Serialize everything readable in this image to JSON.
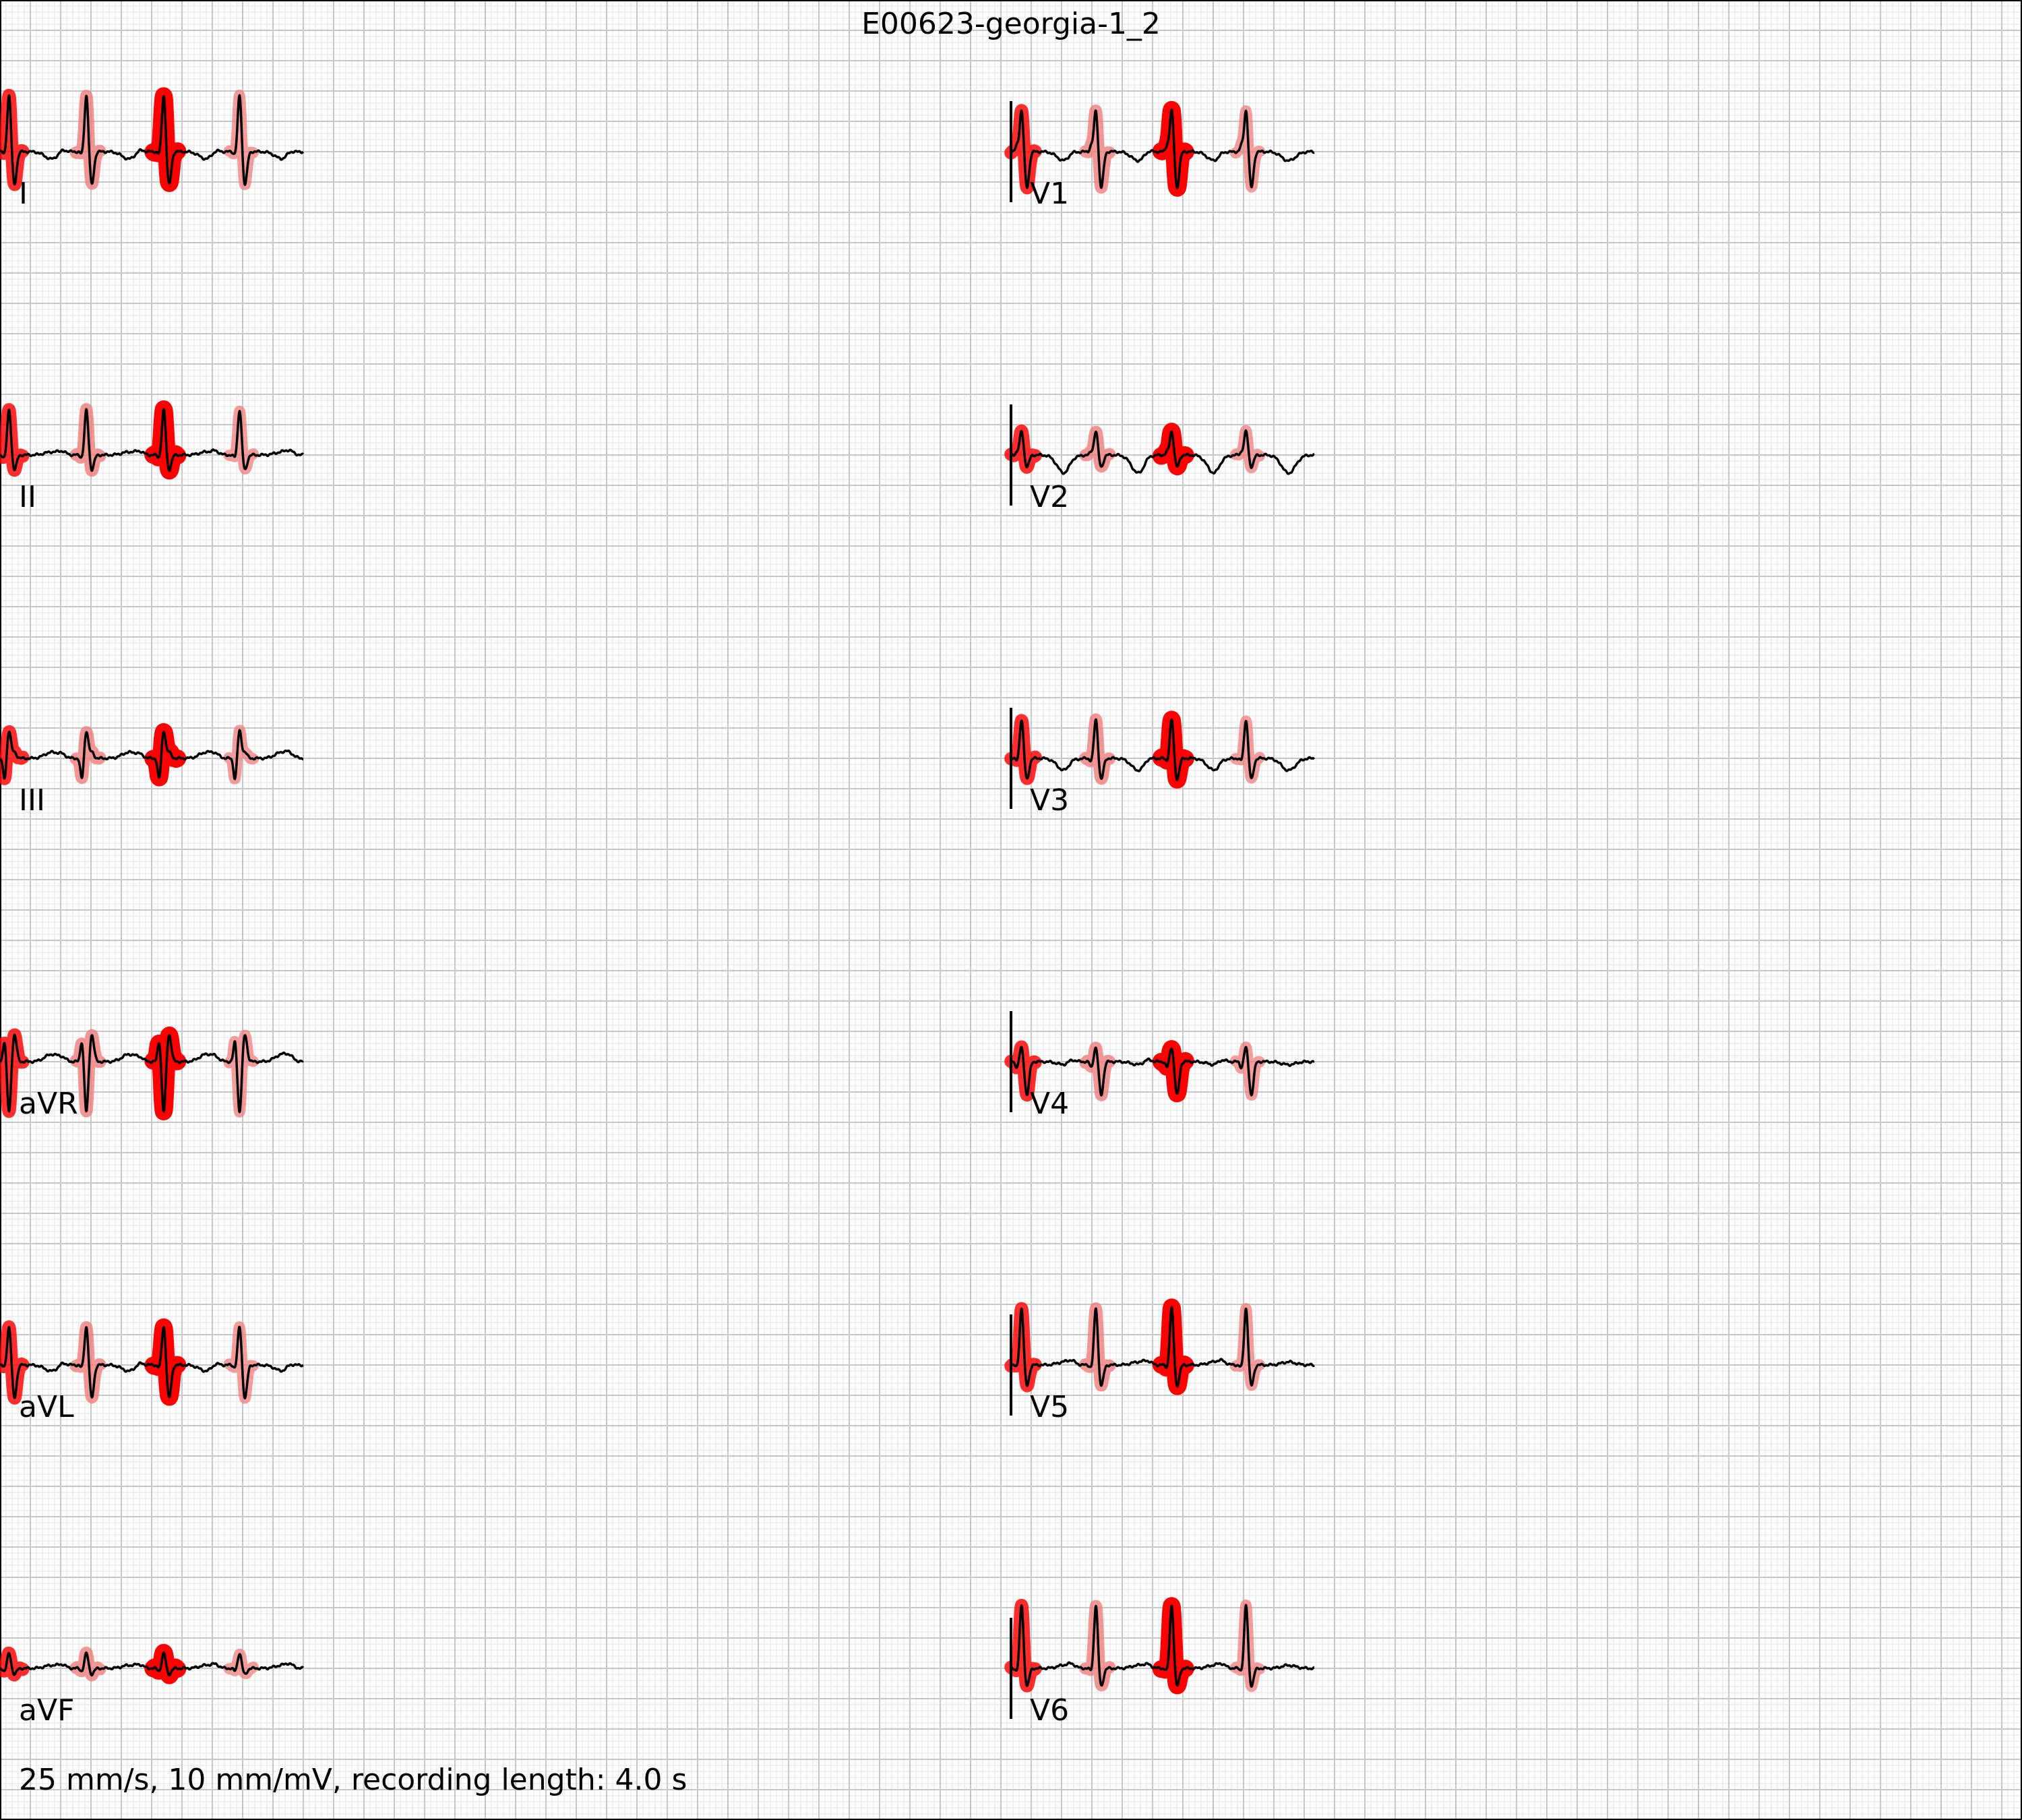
{
  "title": "E00623-georgia-1_2",
  "footer": "25 mm/s, 10 mm/mV, recording length: 4.0 s",
  "colors": {
    "grid_major": "#c8c8c8",
    "grid_minor": "#ebebeb",
    "trace": "#000000",
    "highlight_strong": "#ff0000",
    "highlight_soft": "#f07878"
  },
  "chart_data": {
    "type": "line",
    "paper_speed_mm_per_s": 25,
    "gain_mm_per_mV": 10,
    "recording_length_s": 4.0,
    "columns": [
      {
        "time_range_s": [
          0,
          2.0
        ],
        "leads": [
          "I",
          "II",
          "III",
          "aVR",
          "aVL",
          "aVF"
        ]
      },
      {
        "time_range_s": [
          2.0,
          4.0
        ],
        "leads": [
          "V1",
          "V2",
          "V3",
          "V4",
          "V5",
          "V6"
        ]
      }
    ],
    "beat_times_s": [
      0.06,
      0.57,
      1.08,
      1.58,
      2.07,
      2.56,
      3.06,
      3.55
    ],
    "beat_highlight_levels": [
      0.6,
      0.5,
      1.0,
      0.4
    ],
    "beats": {
      "I": {
        "q": -0.05,
        "r": 0.95,
        "s": -0.55,
        "t": -0.12
      },
      "II": {
        "q": -0.05,
        "r": 0.75,
        "s": -0.25,
        "t": 0.05
      },
      "III": {
        "q": -0.35,
        "r": 0.45,
        "s": 0.1,
        "t": 0.1
      },
      "aVR": {
        "q": 0.35,
        "r": -0.85,
        "s": 0.45,
        "t": 0.12
      },
      "aVL": {
        "q": -0.05,
        "r": 0.65,
        "s": -0.55,
        "t": -0.1
      },
      "aVF": {
        "q": -0.05,
        "r": 0.25,
        "s": -0.1,
        "t": 0.05
      },
      "V1": {
        "q": 0.1,
        "r": 0.7,
        "s": -0.6,
        "t": -0.15
      },
      "V2": {
        "q": 0.05,
        "r": 0.4,
        "s": -0.2,
        "t": -0.3
      },
      "V3": {
        "q": -0.05,
        "r": 0.65,
        "s": -0.35,
        "t": -0.2
      },
      "V4": {
        "q": -0.1,
        "r": 0.25,
        "s": -0.55,
        "t": -0.05
      },
      "V5": {
        "q": -0.05,
        "r": 0.95,
        "s": -0.35,
        "t": 0.05
      },
      "V6": {
        "q": -0.05,
        "r": 1.05,
        "s": -0.3,
        "t": 0.05
      }
    }
  }
}
